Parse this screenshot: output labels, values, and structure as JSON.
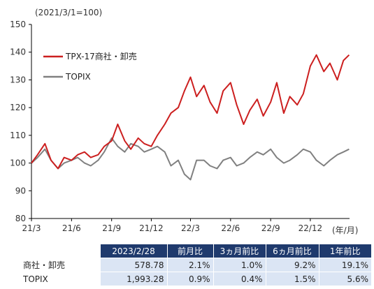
{
  "chart_data": {
    "type": "line",
    "title": "",
    "note": "(2021/3/1=100)",
    "xlabel": "(年/月)",
    "ylabel": "",
    "ylim": [
      80,
      150
    ],
    "yticks": [
      80,
      90,
      100,
      110,
      120,
      130,
      140,
      150
    ],
    "xlim": [
      "2021-03",
      "2023-03"
    ],
    "xticks": [
      "21/3",
      "21/6",
      "21/9",
      "21/12",
      "22/3",
      "22/6",
      "22/9",
      "22/12"
    ],
    "legend_position": "top-left",
    "grid": false,
    "series": [
      {
        "name": "TPX-17商社・卸売",
        "color": "#cc1f1f",
        "x": [
          "2021-03-01",
          "2021-03-15",
          "2021-04-01",
          "2021-04-15",
          "2021-05-01",
          "2021-05-15",
          "2021-06-01",
          "2021-06-15",
          "2021-07-01",
          "2021-07-15",
          "2021-08-01",
          "2021-08-15",
          "2021-09-01",
          "2021-09-15",
          "2021-10-01",
          "2021-10-15",
          "2021-11-01",
          "2021-11-15",
          "2021-12-01",
          "2021-12-15",
          "2022-01-01",
          "2022-01-15",
          "2022-02-01",
          "2022-02-15",
          "2022-03-01",
          "2022-03-15",
          "2022-04-01",
          "2022-04-15",
          "2022-05-01",
          "2022-05-15",
          "2022-06-01",
          "2022-06-15",
          "2022-07-01",
          "2022-07-15",
          "2022-08-01",
          "2022-08-15",
          "2022-09-01",
          "2022-09-15",
          "2022-10-01",
          "2022-10-15",
          "2022-11-01",
          "2022-11-15",
          "2022-12-01",
          "2022-12-15",
          "2023-01-01",
          "2023-01-15",
          "2023-02-01",
          "2023-02-15",
          "2023-02-28"
        ],
        "values": [
          100,
          103,
          107,
          101,
          98,
          102,
          101,
          103,
          104,
          102,
          103,
          106,
          108,
          114,
          108,
          105,
          109,
          107,
          106,
          110,
          114,
          118,
          120,
          126,
          131,
          124,
          128,
          122,
          118,
          126,
          129,
          121,
          114,
          119,
          123,
          117,
          122,
          129,
          118,
          124,
          121,
          125,
          135,
          139,
          133,
          136,
          130,
          137,
          139
        ]
      },
      {
        "name": "TOPIX",
        "color": "#808080",
        "x": [
          "2021-03-01",
          "2021-03-15",
          "2021-04-01",
          "2021-04-15",
          "2021-05-01",
          "2021-05-15",
          "2021-06-01",
          "2021-06-15",
          "2021-07-01",
          "2021-07-15",
          "2021-08-01",
          "2021-08-15",
          "2021-09-01",
          "2021-09-15",
          "2021-10-01",
          "2021-10-15",
          "2021-11-01",
          "2021-11-15",
          "2021-12-01",
          "2021-12-15",
          "2022-01-01",
          "2022-01-15",
          "2022-02-01",
          "2022-02-15",
          "2022-03-01",
          "2022-03-15",
          "2022-04-01",
          "2022-04-15",
          "2022-05-01",
          "2022-05-15",
          "2022-06-01",
          "2022-06-15",
          "2022-07-01",
          "2022-07-15",
          "2022-08-01",
          "2022-08-15",
          "2022-09-01",
          "2022-09-15",
          "2022-10-01",
          "2022-10-15",
          "2022-11-01",
          "2022-11-15",
          "2022-12-01",
          "2022-12-15",
          "2023-01-01",
          "2023-01-15",
          "2023-02-01",
          "2023-02-15",
          "2023-02-28"
        ],
        "values": [
          100,
          102,
          105,
          101,
          98,
          100,
          101,
          102,
          100,
          99,
          101,
          104,
          109,
          106,
          104,
          107,
          106,
          104,
          105,
          106,
          104,
          99,
          101,
          96,
          94,
          101,
          101,
          99,
          98,
          101,
          102,
          99,
          100,
          102,
          104,
          103,
          105,
          102,
          100,
          101,
          103,
          105,
          104,
          101,
          99,
          101,
          103,
          104,
          105
        ]
      }
    ]
  },
  "table": {
    "headers": [
      "",
      "2023/2/28",
      "前月比",
      "3ヵ月前比",
      "6ヵ月前比",
      "1年前比"
    ],
    "rows": [
      {
        "name": "商社・卸売",
        "cells": [
          "578.78",
          "2.1%",
          "1.0%",
          "9.2%",
          "19.1%"
        ]
      },
      {
        "name": "TOPIX",
        "cells": [
          "1,993.28",
          "0.9%",
          "0.4%",
          "1.5%",
          "5.6%"
        ]
      }
    ]
  }
}
